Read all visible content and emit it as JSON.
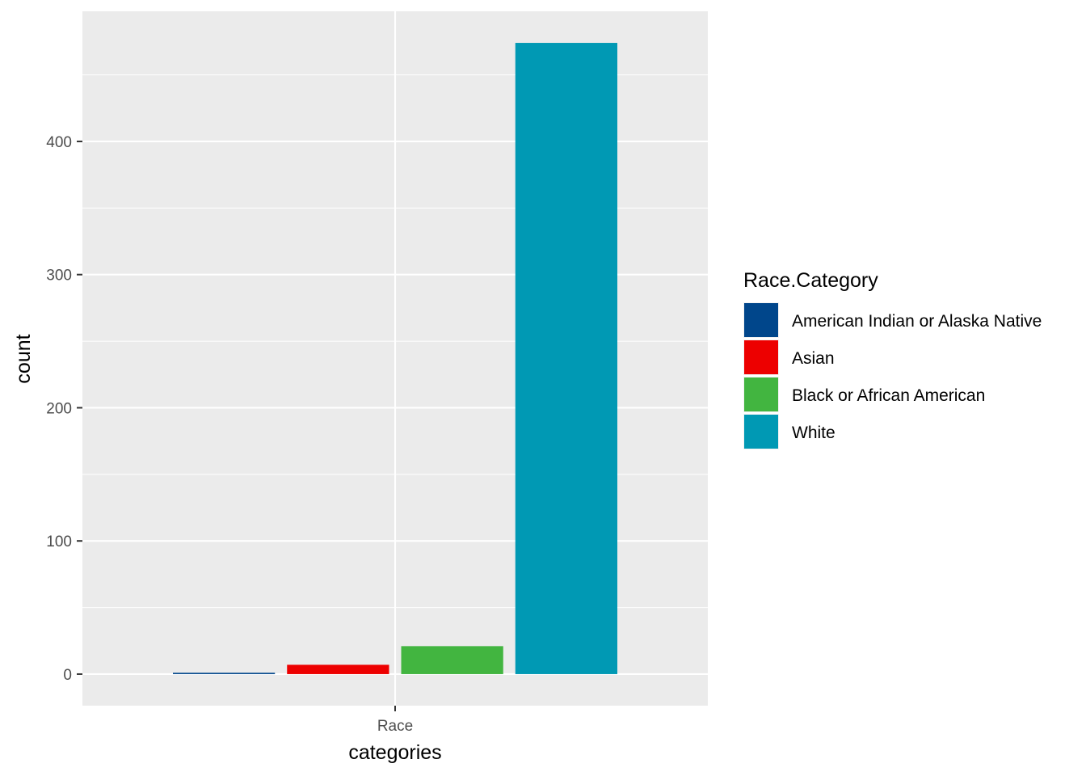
{
  "chart_data": {
    "type": "bar",
    "categories": [
      "Race"
    ],
    "series": [
      {
        "name": "American Indian or Alaska Native",
        "values": [
          1
        ],
        "color": "#00468B"
      },
      {
        "name": "Asian",
        "values": [
          7
        ],
        "color": "#ED0000"
      },
      {
        "name": "Black or African American",
        "values": [
          21
        ],
        "color": "#42B540"
      },
      {
        "name": "White",
        "values": [
          474
        ],
        "color": "#0099B4"
      }
    ],
    "title": "",
    "xlabel": "categories",
    "ylabel": "count",
    "yticks": [
      0,
      100,
      200,
      300,
      400
    ],
    "ylim": [
      -23.7,
      497.7
    ],
    "grid": true,
    "legend": {
      "title": "Race.Category",
      "position": "right"
    },
    "panel_background": "#EBEBEB",
    "gridline_color": "#FFFFFF"
  }
}
